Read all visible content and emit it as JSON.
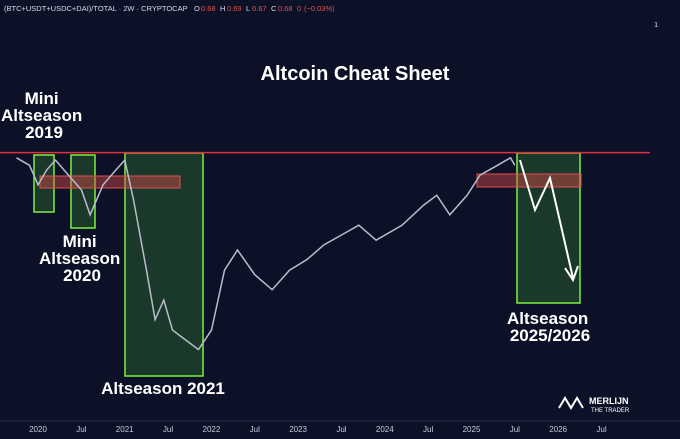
{
  "header": {
    "symbol": "(BTC+USDT+USDC+DAI)/TOTAL · 2W · CRYPTOCAP",
    "open_label": "O",
    "open": 0.68,
    "high_label": "H",
    "high": 0.69,
    "low_label": "L",
    "low": 0.67,
    "close_label": "C",
    "close": 0.68,
    "change": 0,
    "change_pct": "(−0.03%)",
    "corner": "1"
  },
  "chart_data": {
    "type": "line",
    "title": "Altcoin Cheat Sheet",
    "annotations": {
      "mini_2019": [
        "Mini",
        "Altseason",
        "2019"
      ],
      "mini_2020": [
        "Mini",
        "Altseason",
        "2020"
      ],
      "alt_2021": [
        "Altseason 2021"
      ],
      "alt_2025": [
        "Altseason",
        "2025/2026"
      ]
    },
    "watermark": [
      "MERLIJN",
      "THE TRADER"
    ],
    "categories": [
      "2020",
      "Jul",
      "2021",
      "Jul",
      "2022",
      "Jul",
      "2023",
      "Jul",
      "2024",
      "Jul",
      "2025",
      "Jul",
      "2026",
      "Jul"
    ],
    "xlim": [
      2019.56,
      2027.06
    ],
    "ylim": [
      0.333,
      0.867
    ],
    "resistance": 0.69,
    "series": [
      {
        "color": "#b9bccb",
        "x": [
          2019.75,
          2019.9,
          2020.0,
          2020.1,
          2020.2,
          2020.35,
          2020.5,
          2020.6,
          2020.75,
          2020.9,
          2021.0,
          2021.1,
          2021.25,
          2021.35,
          2021.45,
          2021.55,
          2021.7,
          2021.85,
          2022.0,
          2022.15,
          2022.3,
          2022.5,
          2022.7,
          2022.9,
          2023.1,
          2023.3,
          2023.5,
          2023.7,
          2023.9,
          2024.2,
          2024.45,
          2024.6,
          2024.75,
          2024.95,
          2025.1,
          2025.3,
          2025.45,
          2025.5
        ],
        "values": [
          0.683,
          0.673,
          0.647,
          0.667,
          0.68,
          0.66,
          0.64,
          0.607,
          0.647,
          0.667,
          0.68,
          0.627,
          0.533,
          0.467,
          0.493,
          0.453,
          0.44,
          0.427,
          0.453,
          0.533,
          0.56,
          0.527,
          0.507,
          0.533,
          0.547,
          0.567,
          0.58,
          0.593,
          0.573,
          0.593,
          0.62,
          0.633,
          0.607,
          0.633,
          0.66,
          0.673,
          0.683,
          0.673
        ]
      }
    ]
  }
}
